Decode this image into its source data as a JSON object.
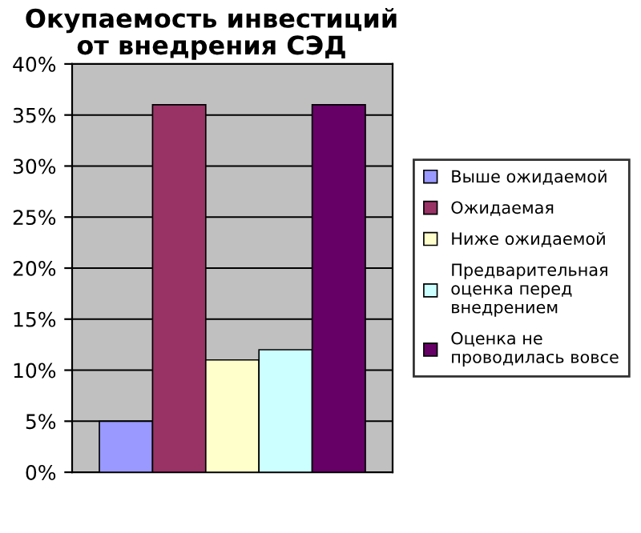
{
  "chart_data": {
    "type": "bar",
    "title": "Окупаемость инвестиций\nот внедрения СЭД",
    "categories": [
      null
    ],
    "series": [
      {
        "name": "Выше ожидаемой",
        "color": "#9999ff",
        "values": [
          5
        ]
      },
      {
        "name": "Ожидаемая",
        "color": "#993366",
        "values": [
          36
        ]
      },
      {
        "name": "Ниже ожидаемой",
        "color": "#ffffcc",
        "values": [
          11
        ]
      },
      {
        "name": "Предварительная\nоценка перед\nвнедрением",
        "color": "#ccffff",
        "values": [
          12
        ]
      },
      {
        "name": "Оценка не\nпроводилась вовсе",
        "color": "#660066",
        "values": [
          36
        ]
      }
    ],
    "ylim": [
      0,
      40
    ],
    "yticks": [
      {
        "value": 0,
        "label": "0%"
      },
      {
        "value": 5,
        "label": "5%"
      },
      {
        "value": 10,
        "label": "10%"
      },
      {
        "value": 15,
        "label": "15%"
      },
      {
        "value": 20,
        "label": "20%"
      },
      {
        "value": 25,
        "label": "25%"
      },
      {
        "value": 30,
        "label": "30%"
      },
      {
        "value": 35,
        "label": "35%"
      },
      {
        "value": 40,
        "label": "40%"
      }
    ],
    "grid": "y",
    "legend": "right"
  }
}
